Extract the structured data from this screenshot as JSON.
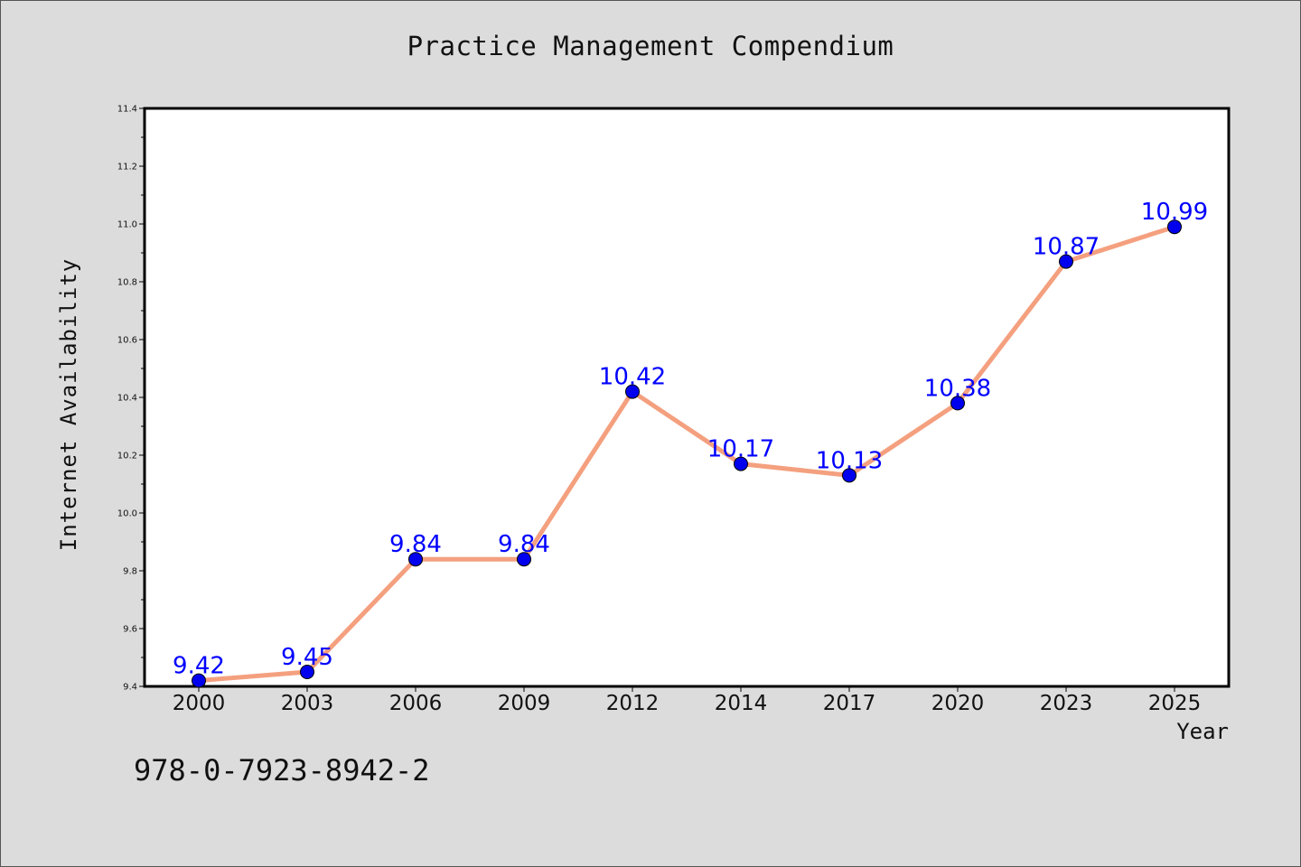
{
  "chart_data": {
    "type": "line",
    "title": "Practice Management Compendium",
    "xlabel": "Year",
    "ylabel": "Internet Availability",
    "categories": [
      "2000",
      "2003",
      "2006",
      "2009",
      "2012",
      "2014",
      "2017",
      "2020",
      "2023",
      "2025"
    ],
    "values": [
      9.42,
      9.45,
      9.84,
      9.84,
      10.42,
      10.17,
      10.13,
      10.38,
      10.87,
      10.99
    ],
    "data_labels": [
      "9.42",
      "9.45",
      "9.84",
      "9.84",
      "10.42",
      "10.17",
      "10.13",
      "10.38",
      "10.87",
      "10.99"
    ],
    "ylim": [
      9.4,
      11.4
    ],
    "yticks": [
      "9.4",
      "9.6",
      "9.8",
      "10.0",
      "10.2",
      "10.4",
      "10.6",
      "10.8",
      "11.0",
      "11.2",
      "11.4"
    ],
    "grid": false,
    "line_color": "#f4a07f",
    "marker_color": "#0000ee",
    "label_color": "#0000ff"
  },
  "footer": {
    "isbn": "978-0-7923-8942-2"
  },
  "colors": {
    "background": "#dcdcdc",
    "plot_area": "#ffffff"
  }
}
